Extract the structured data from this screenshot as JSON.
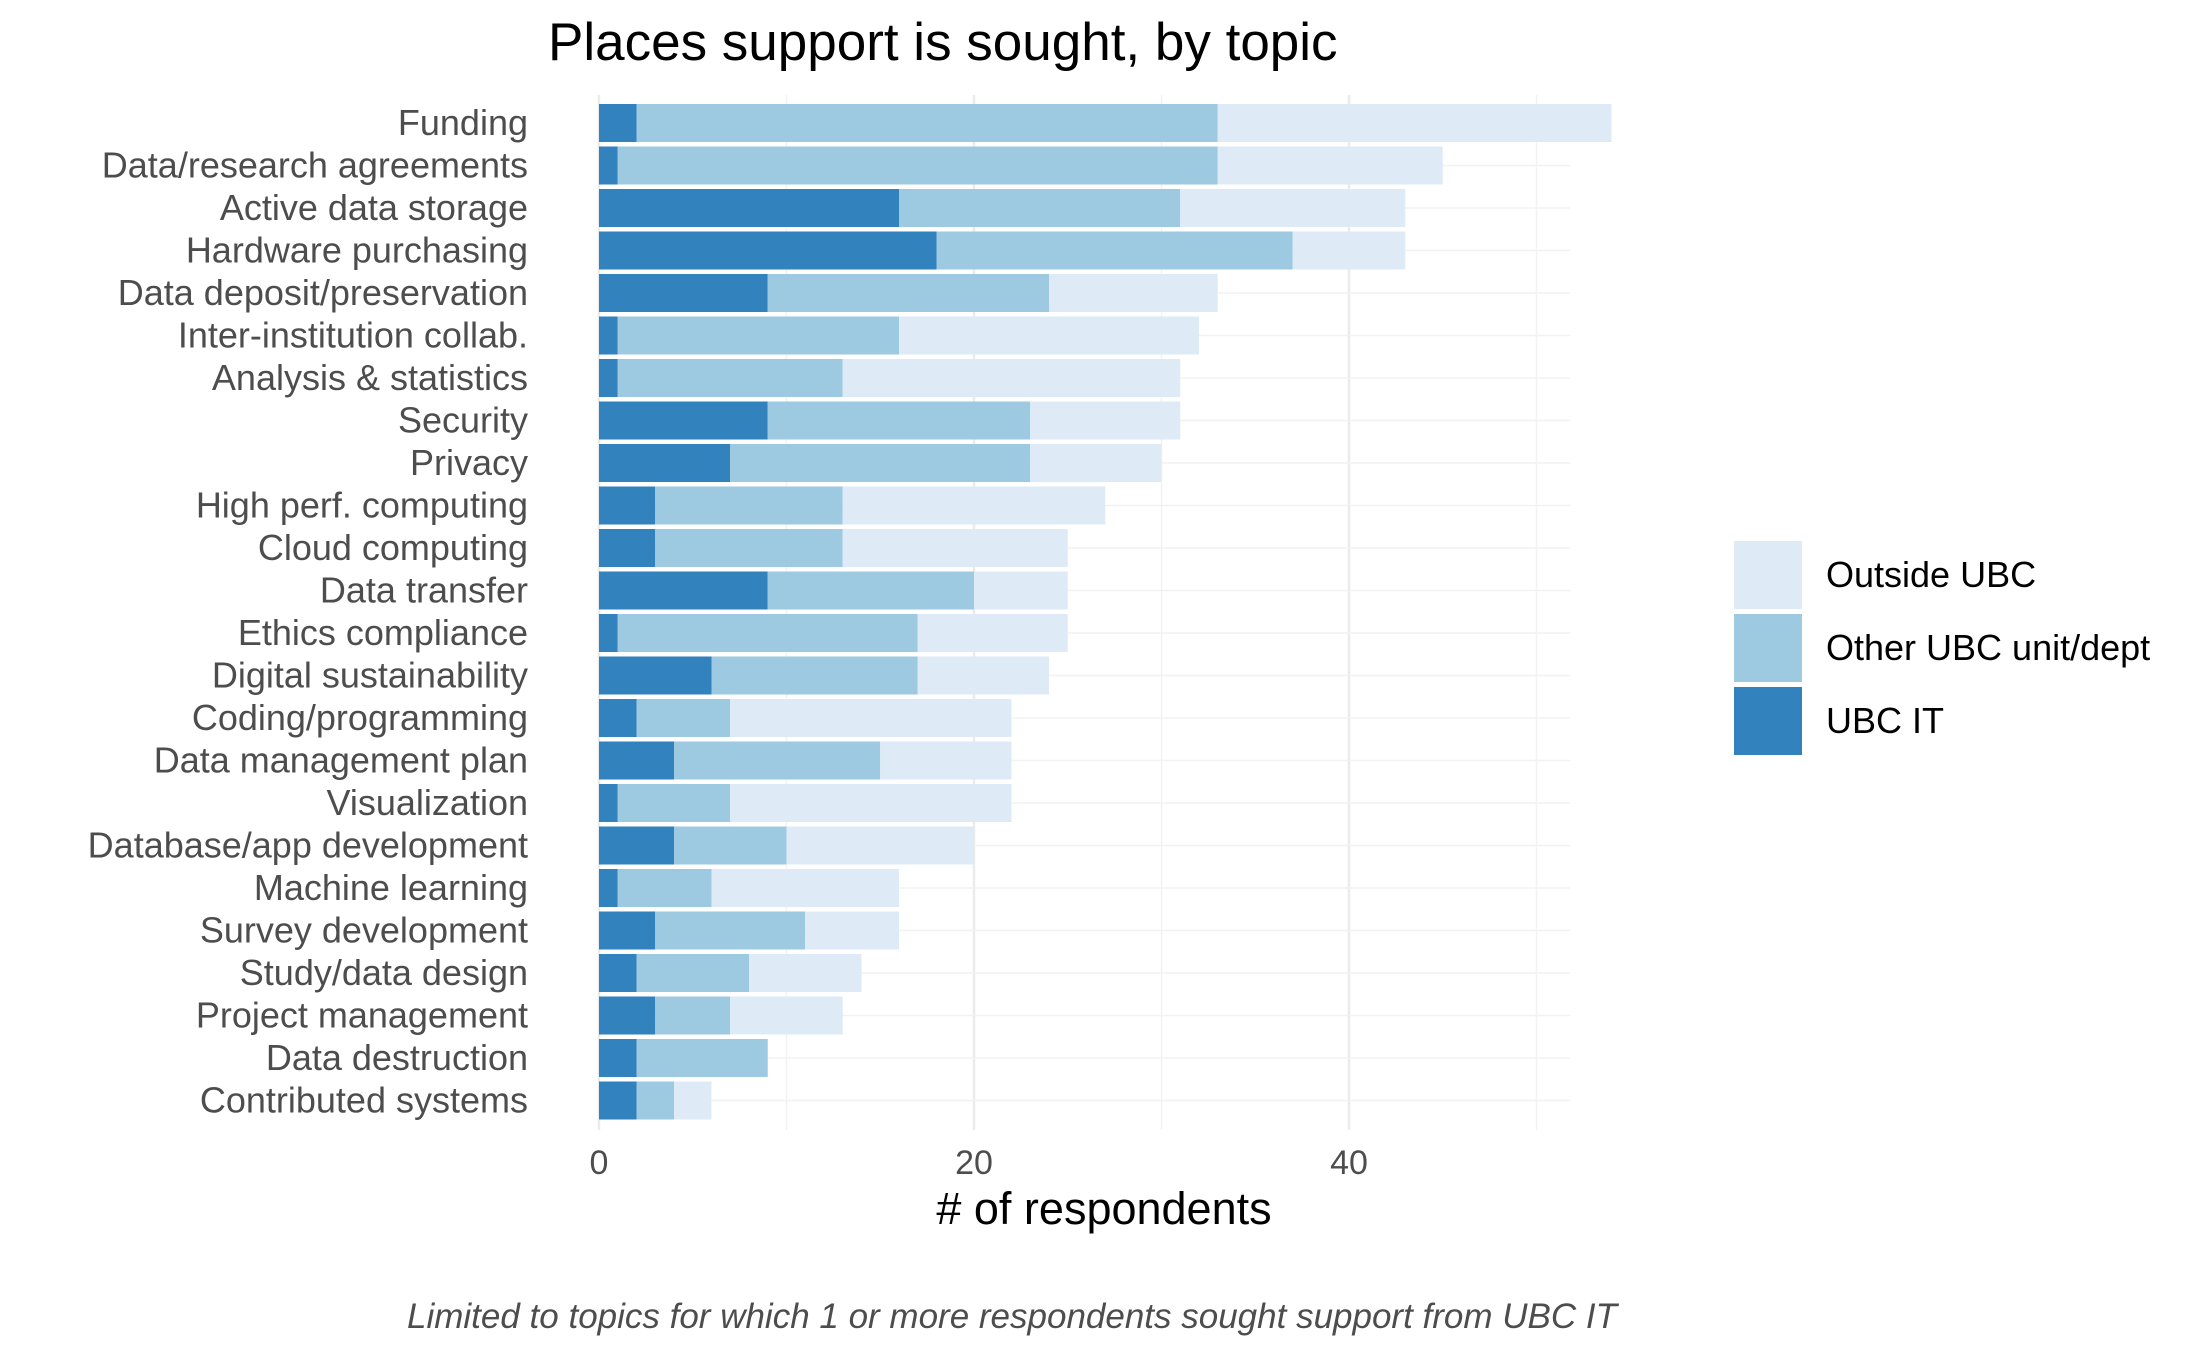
{
  "chart_data": {
    "type": "bar",
    "orientation": "horizontal",
    "stacked": true,
    "title": "Places support is sought, by topic",
    "xlabel": "# of respondents",
    "ylabel": "",
    "caption": "Limited to topics for which 1 or more respondents sought support from UBC IT",
    "xlim": [
      0,
      55
    ],
    "x_ticks": [
      0,
      20,
      40
    ],
    "grid": true,
    "legend_position": "right",
    "categories": [
      "Funding",
      "Data/research agreements",
      "Active data storage",
      "Hardware purchasing",
      "Data deposit/preservation",
      "Inter-institution collab.",
      "Analysis & statistics",
      "Security",
      "Privacy",
      "High perf. computing",
      "Cloud computing",
      "Data transfer",
      "Ethics compliance",
      "Digital sustainability",
      "Coding/programming",
      "Data management plan",
      "Visualization",
      "Database/app development",
      "Machine learning",
      "Survey development",
      "Study/data design",
      "Project management",
      "Data destruction",
      "Contributed systems"
    ],
    "series": [
      {
        "name": "UBC IT",
        "color": "#3182bd",
        "values": [
          2,
          1,
          16,
          18,
          9,
          1,
          1,
          9,
          7,
          3,
          3,
          9,
          1,
          6,
          2,
          4,
          1,
          4,
          1,
          3,
          2,
          3,
          2,
          2
        ]
      },
      {
        "name": "Other UBC unit/dept",
        "color": "#9ecae1",
        "values": [
          31,
          32,
          15,
          19,
          15,
          15,
          12,
          14,
          16,
          10,
          10,
          11,
          16,
          11,
          5,
          11,
          6,
          6,
          5,
          8,
          6,
          4,
          7,
          2
        ]
      },
      {
        "name": "Outside UBC",
        "color": "#deebf7",
        "values": [
          21,
          12,
          12,
          6,
          9,
          16,
          18,
          8,
          7,
          14,
          12,
          5,
          8,
          7,
          15,
          7,
          15,
          10,
          10,
          5,
          6,
          6,
          0,
          2
        ]
      }
    ],
    "legend_order": [
      "Outside UBC",
      "Other UBC unit/dept",
      "UBC IT"
    ]
  }
}
